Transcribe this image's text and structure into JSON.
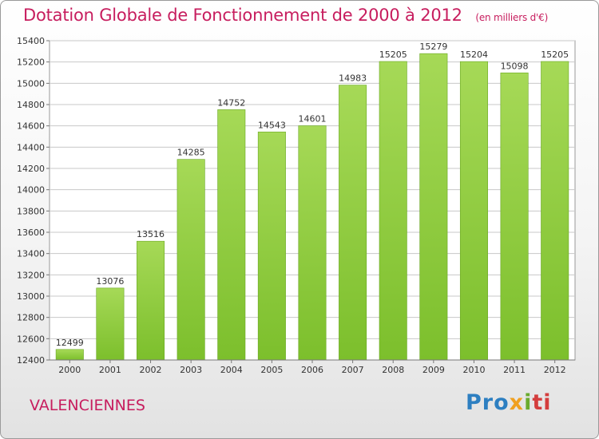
{
  "chart_data": {
    "type": "bar",
    "title": "Dotation Globale de Fonctionnement de 2000 à 2012",
    "subtitle": "(en milliers d'€)",
    "categories": [
      "2000",
      "2001",
      "2002",
      "2003",
      "2004",
      "2005",
      "2006",
      "2007",
      "2008",
      "2009",
      "2010",
      "2011",
      "2012"
    ],
    "values": [
      12499,
      13076,
      13516,
      14285,
      14752,
      14543,
      14601,
      14983,
      15205,
      15279,
      15204,
      15098,
      15205
    ],
    "ylim": [
      12400,
      15400
    ],
    "yticks": [
      12400,
      12600,
      12800,
      13000,
      13200,
      13400,
      13600,
      13800,
      14000,
      14200,
      14400,
      14600,
      14800,
      15000,
      15200,
      15400
    ],
    "grid": true,
    "bar_color": "#7cbf2c",
    "bar_color_light": "#a6d957"
  },
  "place_name": "VALENCIENNES",
  "logo": {
    "part1": "Pro",
    "part2": "x",
    "part3": "i",
    "part4": "ti"
  },
  "colors": {
    "title": "#c71d5e",
    "grid": "#c8c8c8"
  }
}
